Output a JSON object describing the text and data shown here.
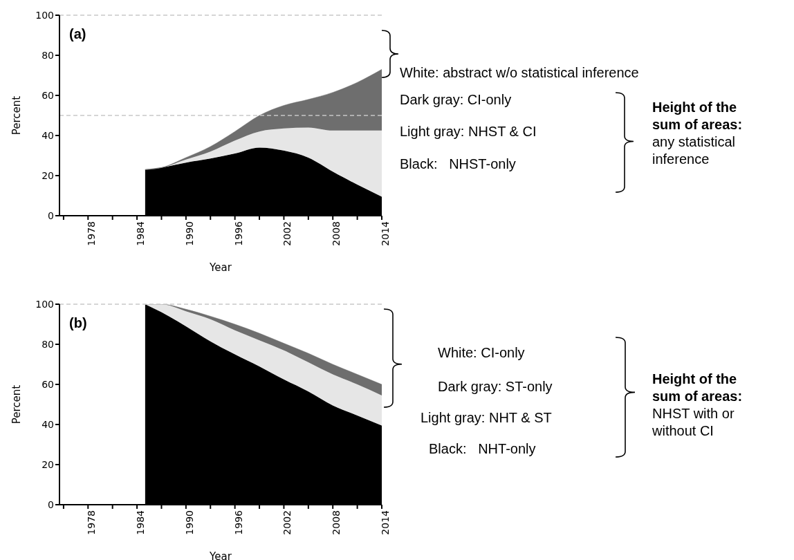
{
  "chart_data": [
    {
      "type": "area",
      "title": "(a)",
      "xlabel": "Year",
      "ylabel": "Percent",
      "stacked": true,
      "grid": false,
      "legend": false,
      "x": [
        1985,
        1987,
        1990,
        1993,
        1996,
        1999,
        2002,
        2005,
        2008,
        2011,
        2014
      ],
      "series": [
        {
          "color": "#000000",
          "values": [
            23,
            24,
            26.5,
            28.5,
            31,
            34,
            32.5,
            29,
            22,
            15.5,
            9.5
          ]
        },
        {
          "color": "#e6e6e6",
          "values": [
            0,
            0,
            1.5,
            3.5,
            6.5,
            8,
            11,
            15,
            20.5,
            27,
            33
          ]
        },
        {
          "color": "#6e6e6e",
          "values": [
            0,
            0,
            1,
            2.5,
            4.5,
            8,
            11.5,
            14,
            19,
            24,
            30.5
          ]
        }
      ],
      "xlim": [
        1974.5,
        2014
      ],
      "xticks": [
        {
          "value": 1975,
          "label": null
        },
        1978,
        {
          "value": 1981,
          "label": null
        },
        1984,
        {
          "value": 1987,
          "label": null
        },
        1990,
        {
          "value": 1993,
          "label": null
        },
        1996,
        {
          "value": 1999,
          "label": null
        },
        2002,
        {
          "value": 2005,
          "label": null
        },
        2008,
        {
          "value": 2011,
          "label": null
        },
        2014
      ],
      "ylim": [
        0,
        100
      ],
      "yticks": [
        0,
        20,
        40,
        60,
        80,
        100
      ],
      "ref_lines": [
        {
          "axis": "y",
          "value": 100,
          "color": "#c8c8c8",
          "line_style": "dashed"
        },
        {
          "axis": "y",
          "value": 50,
          "color": "#c8c8c8",
          "line_style": "dashed"
        }
      ],
      "annotations": [
        "White: abstract w/o statistical inference",
        "Dark gray: CI-only",
        "Light gray: NHST & CI",
        "Black:   NHST-only",
        "Height of the sum of areas:",
        "any statistical inference"
      ]
    },
    {
      "type": "area",
      "title": "(b)",
      "xlabel": "Year",
      "ylabel": "Percent",
      "stacked": true,
      "grid": false,
      "legend": false,
      "x": [
        1985,
        1987,
        1990,
        1993,
        1996,
        1999,
        2002,
        2005,
        2008,
        2011,
        2014
      ],
      "series": [
        {
          "color": "#000000",
          "values": [
            100,
            96,
            89,
            81.5,
            75,
            69,
            62.5,
            56.5,
            49.5,
            44.5,
            39.5
          ]
        },
        {
          "color": "#e6e6e6",
          "values": [
            0,
            4,
            7.5,
            11,
            12,
            13,
            14.5,
            14.5,
            15.5,
            15.5,
            15
          ]
        },
        {
          "color": "#6e6e6e",
          "values": [
            0,
            0,
            1,
            1.5,
            3,
            3.5,
            3.5,
            4.5,
            5,
            5,
            5.5
          ]
        }
      ],
      "xlim": [
        1974.5,
        2014
      ],
      "xticks": [
        {
          "value": 1975,
          "label": null
        },
        1978,
        {
          "value": 1981,
          "label": null
        },
        1984,
        {
          "value": 1987,
          "label": null
        },
        1990,
        {
          "value": 1993,
          "label": null
        },
        1996,
        {
          "value": 1999,
          "label": null
        },
        2002,
        {
          "value": 2005,
          "label": null
        },
        2008,
        {
          "value": 2011,
          "label": null
        },
        2014
      ],
      "ylim": [
        0,
        100
      ],
      "yticks": [
        0,
        20,
        40,
        60,
        80,
        100
      ],
      "ref_lines": [
        {
          "axis": "y",
          "value": 100,
          "color": "#c8c8c8",
          "line_style": "dashed"
        }
      ],
      "annotations": [
        "White: CI-only",
        "Dark gray: ST-only",
        "Light gray: NHT & ST",
        "Black:   NHT-only",
        "Height of the sum of areas:",
        "NHST with or without CI"
      ]
    }
  ]
}
